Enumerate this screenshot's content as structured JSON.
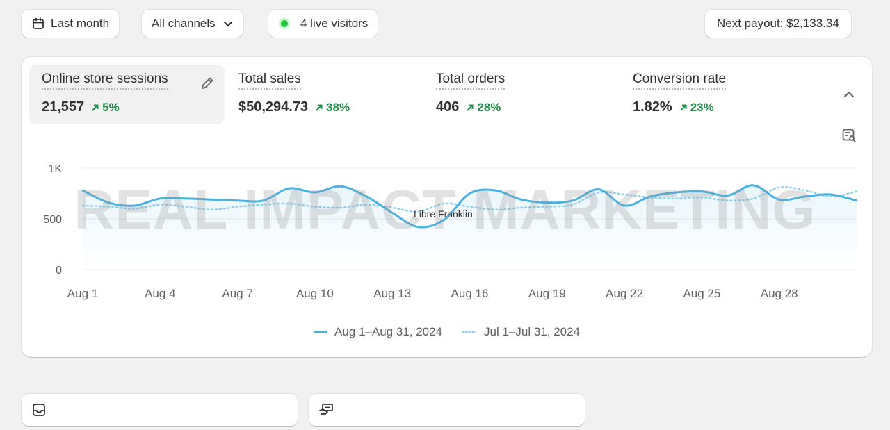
{
  "toolbar": {
    "date_range": "Last month",
    "channels": "All channels",
    "live_visitors": "4 live visitors",
    "payout": "Next payout: $2,133.34"
  },
  "metrics": [
    {
      "label": "Online store sessions",
      "value": "21,557",
      "change": "5%"
    },
    {
      "label": "Total sales",
      "value": "$50,294.73",
      "change": "38%"
    },
    {
      "label": "Total orders",
      "value": "406",
      "change": "28%"
    },
    {
      "label": "Conversion rate",
      "value": "1.82%",
      "change": "23%"
    }
  ],
  "watermark": {
    "text": "REAL IMPACT MARKETING",
    "caption": "Libre Franklin"
  },
  "colors": {
    "accent": "#47b2e4",
    "positive": "#1f8f4a",
    "live": "#22c83a"
  },
  "chart_data": {
    "type": "line",
    "x": [
      "Aug 1",
      "Aug 2",
      "Aug 3",
      "Aug 4",
      "Aug 5",
      "Aug 6",
      "Aug 7",
      "Aug 8",
      "Aug 9",
      "Aug 10",
      "Aug 11",
      "Aug 12",
      "Aug 13",
      "Aug 14",
      "Aug 15",
      "Aug 16",
      "Aug 17",
      "Aug 18",
      "Aug 19",
      "Aug 20",
      "Aug 21",
      "Aug 22",
      "Aug 23",
      "Aug 24",
      "Aug 25",
      "Aug 26",
      "Aug 27",
      "Aug 28",
      "Aug 29",
      "Aug 30",
      "Aug 31"
    ],
    "tick_labels": [
      "Aug 1",
      "Aug 4",
      "Aug 7",
      "Aug 10",
      "Aug 13",
      "Aug 16",
      "Aug 19",
      "Aug 22",
      "Aug 25",
      "Aug 28"
    ],
    "y_ticks": [
      "0",
      "500",
      "1K"
    ],
    "ylim": [
      0,
      1000
    ],
    "grid": true,
    "legend": "bottom-center",
    "series": [
      {
        "name": "Aug 1–Aug 31, 2024",
        "style": "solid",
        "values": [
          780,
          660,
          630,
          700,
          700,
          690,
          680,
          680,
          800,
          760,
          820,
          720,
          560,
          420,
          490,
          750,
          780,
          690,
          660,
          680,
          790,
          630,
          720,
          760,
          770,
          730,
          830,
          690,
          720,
          740,
          680
        ]
      },
      {
        "name": "Jul 1–Jul 31, 2024",
        "style": "dotted",
        "values": [
          630,
          620,
          600,
          640,
          620,
          590,
          620,
          640,
          650,
          620,
          610,
          640,
          610,
          570,
          650,
          620,
          590,
          610,
          620,
          640,
          760,
          740,
          710,
          700,
          710,
          680,
          700,
          810,
          780,
          720,
          770
        ]
      }
    ]
  }
}
